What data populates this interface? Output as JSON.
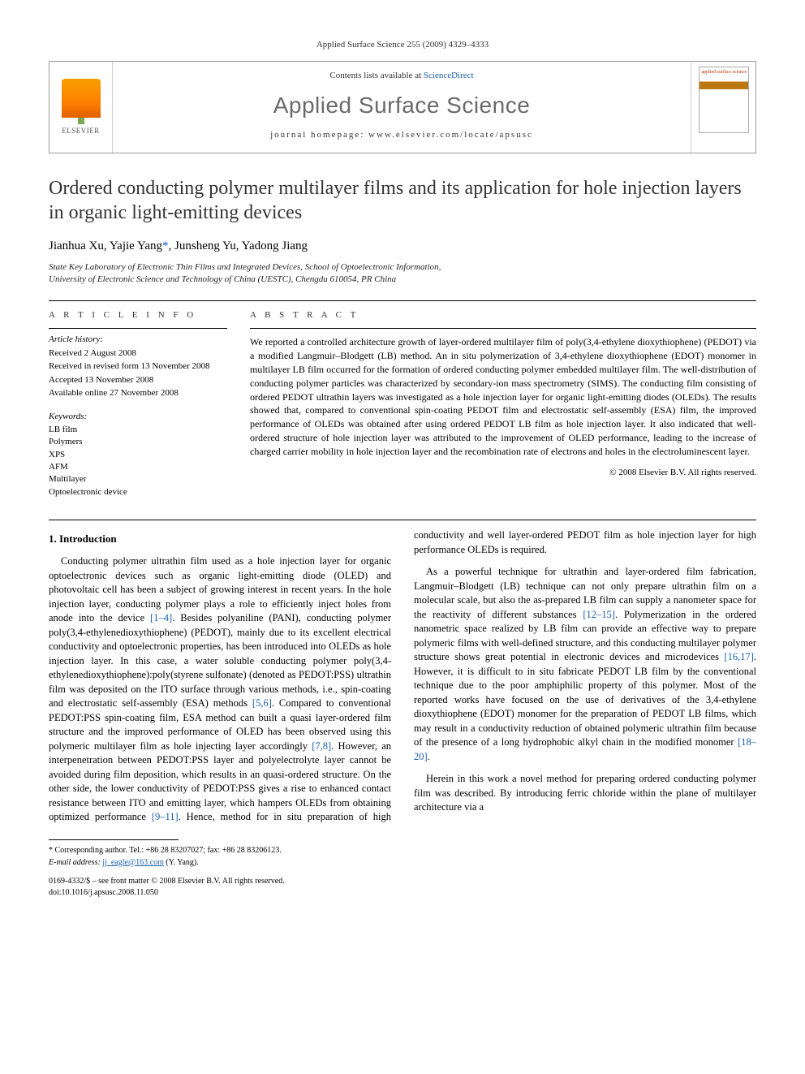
{
  "running_head": "Applied Surface Science 255 (2009) 4329–4333",
  "header": {
    "contents_prefix": "Contents lists available at ",
    "contents_link": "ScienceDirect",
    "journal_title": "Applied Surface Science",
    "homepage_label": "journal homepage: www.elsevier.com/locate/apsusc",
    "publisher_logo_text": "ELSEVIER",
    "cover_title": "applied surface science"
  },
  "article": {
    "title": "Ordered conducting polymer multilayer films and its application for hole injection layers in organic light-emitting devices",
    "authors": "Jianhua Xu, Yajie Yang",
    "corr_mark": "*",
    "authors_tail": ", Junsheng Yu, Yadong Jiang",
    "affiliation_line1": "State Key Laboratory of Electronic Thin Films and Integrated Devices, School of Optoelectronic Information,",
    "affiliation_line2": "University of Electronic Science and Technology of China (UESTC), Chengdu 610054, PR China"
  },
  "info": {
    "label": "A R T I C L E   I N F O",
    "history_head": "Article history:",
    "history": [
      "Received 2 August 2008",
      "Received in revised form 13 November 2008",
      "Accepted 13 November 2008",
      "Available online 27 November 2008"
    ],
    "keywords_head": "Keywords:",
    "keywords": [
      "LB film",
      "Polymers",
      "XPS",
      "AFM",
      "Multilayer",
      "Optoelectronic device"
    ]
  },
  "abstract": {
    "label": "A B S T R A C T",
    "text": "We reported a controlled architecture growth of layer-ordered multilayer film of poly(3,4-ethylene dioxythiophene) (PEDOT) via a modified Langmuir–Blodgett (LB) method. An in situ polymerization of 3,4-ethylene dioxythiophene (EDOT) monomer in multilayer LB film occurred for the formation of ordered conducting polymer embedded multilayer film. The well-distribution of conducting polymer particles was characterized by secondary-ion mass spectrometry (SIMS). The conducting film consisting of ordered PEDOT ultrathin layers was investigated as a hole injection layer for organic light-emitting diodes (OLEDs). The results showed that, compared to conventional spin-coating PEDOT film and electrostatic self-assembly (ESA) film, the improved performance of OLEDs was obtained after using ordered PEDOT LB film as hole injection layer. It also indicated that well-ordered structure of hole injection layer was attributed to the improvement of OLED performance, leading to the increase of charged carrier mobility in hole injection layer and the recombination rate of electrons and holes in the electroluminescent layer.",
    "copyright": "© 2008 Elsevier B.V. All rights reserved."
  },
  "body": {
    "section1_head": "1. Introduction",
    "p1a": "Conducting polymer ultrathin film used as a hole injection layer for organic optoelectronic devices such as organic light-emitting diode (OLED) and photovoltaic cell has been a subject of growing interest in recent years. In the hole injection layer, conducting polymer plays a role to efficiently inject holes from anode into the device ",
    "p1_ref1": "[1–4]",
    "p1b": ". Besides polyaniline (PANI), conducting polymer poly(3,4-ethylenedioxythiophene) (PEDOT), mainly due to its excellent electrical conductivity and optoelectronic properties, has been introduced into OLEDs as hole injection layer. In this case, a water soluble conducting polymer poly(3,4-ethylenedioxythiophene):poly(styrene sulfonate) (denoted as PEDOT:PSS) ultrathin film was deposited on the ITO surface through various methods, i.e., spin-coating and electrostatic self-assembly (ESA) methods ",
    "p1_ref2": "[5,6]",
    "p1c": ". Compared to conventional PEDOT:PSS spin-coating film, ESA method can built a quasi layer-ordered film structure and the improved performance of OLED has been observed using this polymeric multilayer film as hole injecting layer accordingly ",
    "p1_ref3": "[7,8]",
    "p1d": ". However, an interpenetration between PEDOT:PSS layer and polyelectrolyte layer cannot be avoided during film deposition, which results in an quasi-ordered structure. On the other side, the lower conductivity of PEDOT:PSS gives a rise to enhanced contact resistance between ITO and emitting layer, which hampers OLEDs from obtaining optimized performance ",
    "p1_ref4": "[9–11]",
    "p1e": ". Hence, method for in situ preparation of high conductivity and well layer-ordered PEDOT film as hole injection layer for high performance OLEDs is required.",
    "p2a": "As a powerful technique for ultrathin and layer-ordered film fabrication, Langmuir–Blodgett (LB) technique can not only prepare ultrathin film on a molecular scale, but also the as-prepared LB film can supply a nanometer space for the reactivity of different substances ",
    "p2_ref1": "[12–15]",
    "p2b": ". Polymerization in the ordered nanometric space realized by LB film can provide an effective way to prepare polymeric films with well-defined structure, and this conducting multilayer polymer structure shows great potential in electronic devices and microdevices ",
    "p2_ref2": "[16,17]",
    "p2c": ". However, it is difficult to in situ fabricate PEDOT LB film by the conventional technique due to the poor amphiphilic property of this polymer. Most of the reported works have focused on the use of derivatives of the 3,4-ethylene dioxythiophene (EDOT) monomer for the preparation of PEDOT LB films, which may result in a conductivity reduction of obtained polymeric ultrathin film because of the presence of a long hydrophobic alkyl chain in the modified monomer ",
    "p2_ref3": "[18–20]",
    "p2d": ".",
    "p3": "Herein in this work a novel method for preparing ordered conducting polymer film was described. By introducing ferric chloride within the plane of multilayer architecture via a"
  },
  "footnotes": {
    "corr": "* Corresponding author. Tel.: +86 28 83207027; fax: +86 28 83206123.",
    "email_label": "E-mail address: ",
    "email": "jj_eagle@163.com",
    "email_tail": " (Y. Yang).",
    "frontmatter": "0169-4332/$ – see front matter © 2008 Elsevier B.V. All rights reserved.",
    "doi": "doi:10.1016/j.apsusc.2008.11.050"
  },
  "colors": {
    "link": "#1a5fad",
    "text": "#000000",
    "grey_title": "#6a6a6a"
  }
}
